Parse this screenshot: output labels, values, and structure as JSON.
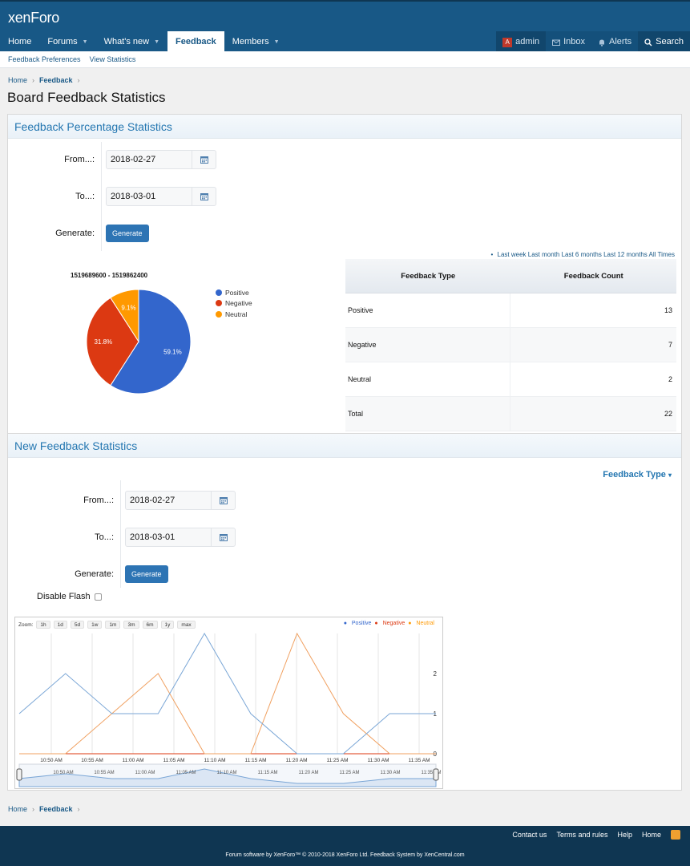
{
  "header": {
    "logo": "xenForo",
    "nav": [
      {
        "label": "Home",
        "caret": false
      },
      {
        "label": "Forums",
        "caret": true
      },
      {
        "label": "What's new",
        "caret": true
      },
      {
        "label": "Feedback",
        "caret": false,
        "active": true
      },
      {
        "label": "Members",
        "caret": true
      }
    ],
    "user": {
      "avatar_letter": "A",
      "name": "admin",
      "inbox": "Inbox",
      "alerts": "Alerts",
      "search": "Search"
    }
  },
  "subnav": [
    "Feedback Preferences",
    "View Statistics"
  ],
  "breadcrumb": [
    "Home",
    "Feedback"
  ],
  "page_title": "Board Feedback Statistics",
  "percentage": {
    "heading": "Feedback Percentage Statistics",
    "from_label": "From...:",
    "from_value": "2018-02-27",
    "to_label": "To...:",
    "to_value": "2018-03-01",
    "generate_label": "Generate:",
    "generate_button": "Generate",
    "ranges": [
      "Last week",
      "Last month",
      "Last 6 months",
      "Last 12 months",
      "All Times"
    ],
    "pie_title": "1519689600 - 1519862400",
    "table": {
      "headers": [
        "Feedback Type",
        "Feedback Count"
      ],
      "rows": [
        {
          "type": "Positive",
          "count": "13"
        },
        {
          "type": "Negative",
          "count": "7"
        },
        {
          "type": "Neutral",
          "count": "2"
        },
        {
          "type": "Total",
          "count": "22"
        }
      ]
    }
  },
  "newstats": {
    "heading": "New Feedback Statistics",
    "feedback_type": "Feedback Type",
    "from_label": "From...:",
    "from_value": "2018-02-27",
    "to_label": "To...:",
    "to_value": "2018-03-01",
    "generate_label": "Generate:",
    "generate_button": "Generate",
    "disable_flash": "Disable Flash",
    "zoom_label": "Zoom:",
    "zoom_buttons": [
      "1h",
      "1d",
      "5d",
      "1w",
      "1m",
      "3m",
      "6m",
      "1y",
      "max"
    ]
  },
  "colors": {
    "positive": "#3366cc",
    "negative": "#dc3912",
    "neutral": "#ff9900",
    "line_blue": "#7aa6d6",
    "line_orange": "#f0a060"
  },
  "chart_data": [
    {
      "type": "pie",
      "title": "1519689600 - 1519862400",
      "legend": [
        "Positive",
        "Negative",
        "Neutral"
      ],
      "values": [
        13,
        7,
        2
      ],
      "labels": [
        "59.1%",
        "31.8%",
        "9.1%"
      ],
      "legend_position": "right"
    },
    {
      "type": "line",
      "series": [
        {
          "name": "Positive",
          "values": [
            1,
            2,
            1,
            1,
            3,
            1,
            0,
            0,
            1,
            1
          ]
        },
        {
          "name": "Negative",
          "values": [
            0,
            0,
            0,
            0,
            0,
            0,
            0,
            0,
            0,
            0
          ]
        },
        {
          "name": "Neutral",
          "values": [
            0,
            0,
            1,
            2,
            0,
            0,
            3,
            1,
            0,
            0
          ]
        }
      ],
      "x_ticks": [
        "10:50 AM",
        "10:55 AM",
        "11:00 AM",
        "11:05 AM",
        "11:10 AM",
        "11:15 AM",
        "11:20 AM",
        "11:25 AM",
        "11:30 AM",
        "11:35 AM"
      ],
      "y_ticks": [
        "0",
        "1",
        "2"
      ],
      "grid": true
    }
  ],
  "footer": {
    "breadcrumb": [
      "Home",
      "Feedback"
    ],
    "links": [
      "Contact us",
      "Terms and rules",
      "Help",
      "Home"
    ],
    "copyright": "Forum software by XenForo™ © 2010-2018 XenForo Ltd. Feedback System by XenCentral.com"
  }
}
